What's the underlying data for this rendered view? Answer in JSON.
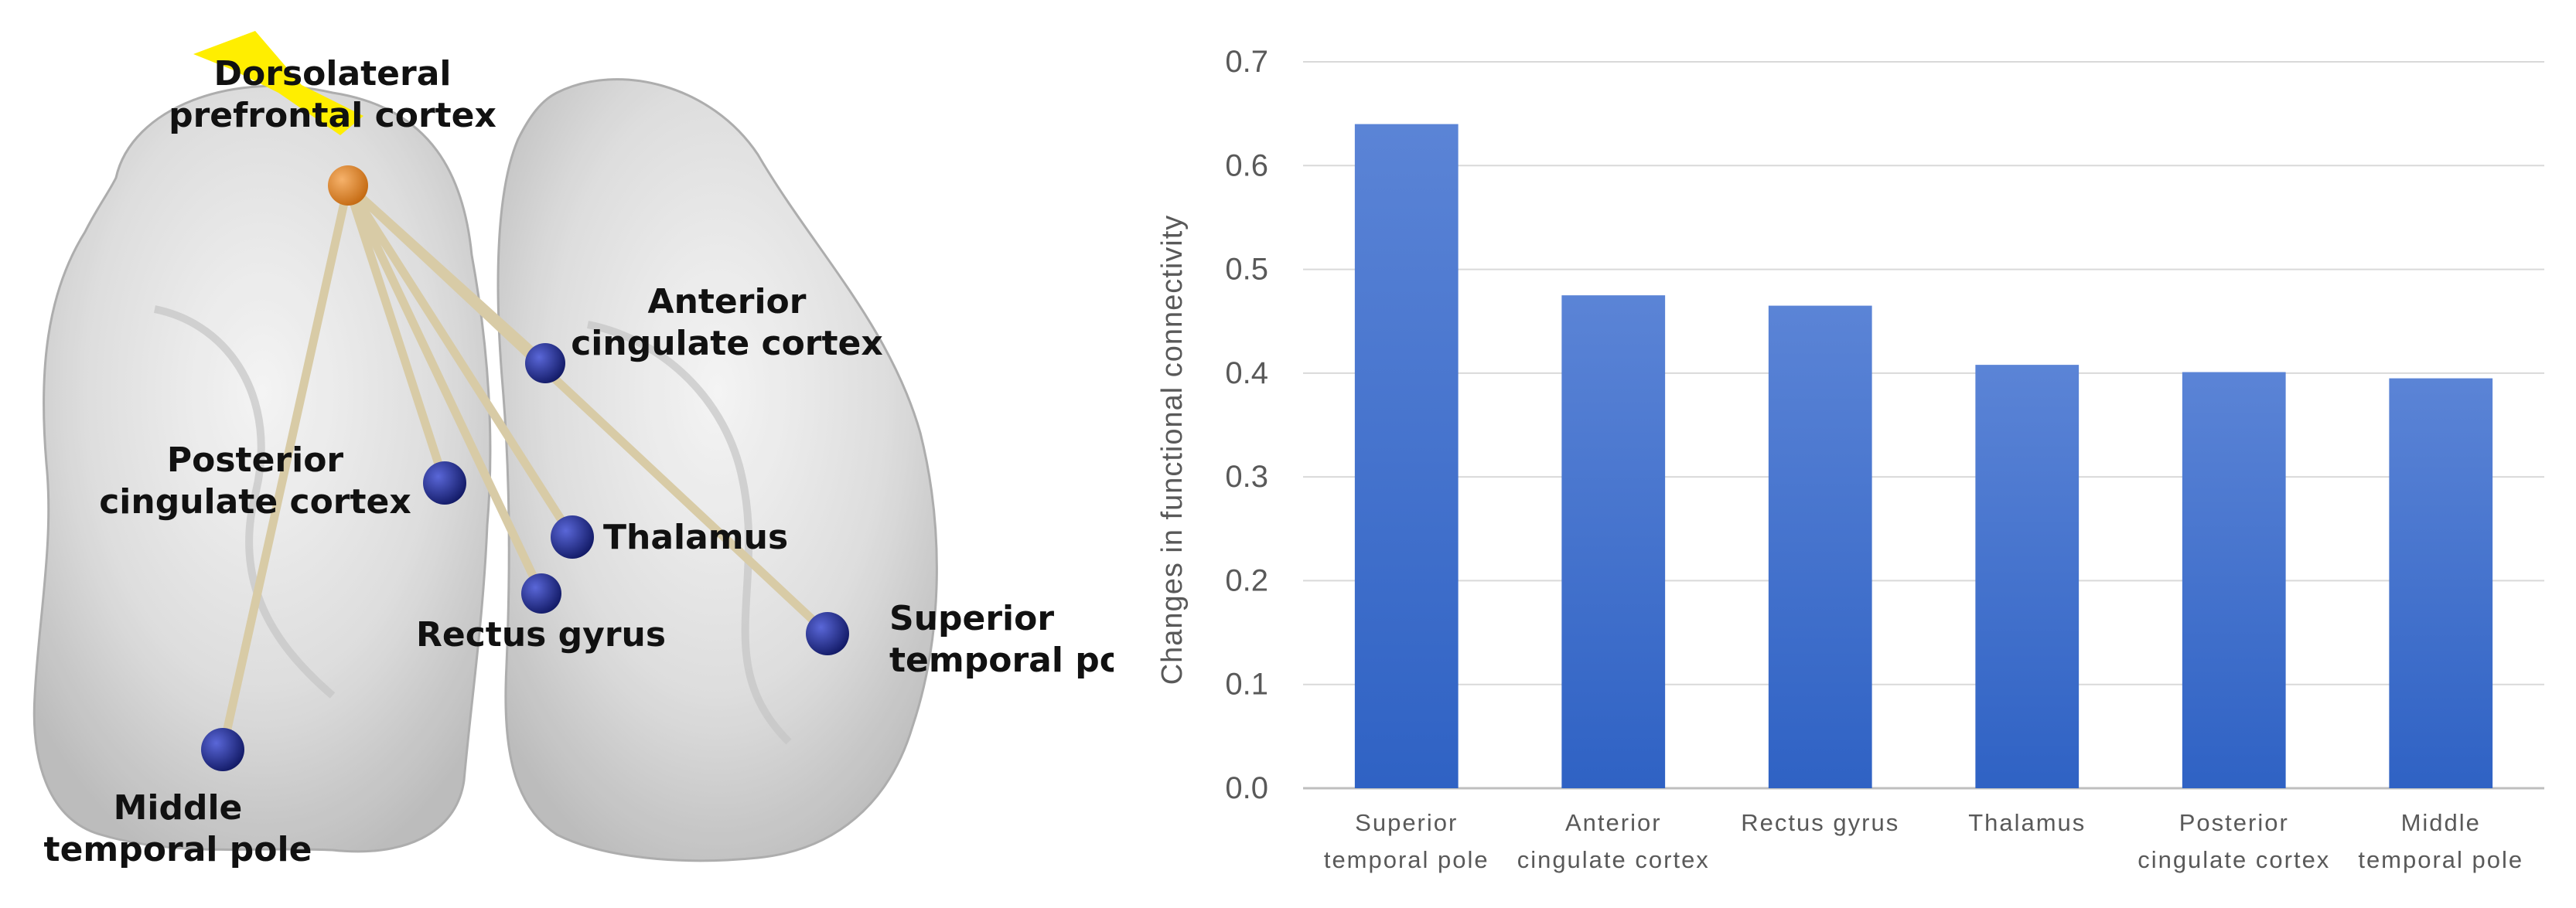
{
  "figure": {
    "brain": {
      "nodes": [
        {
          "key": "dlpfc",
          "label_lines": [
            "Dorsolateral",
            "prefrontal cortex"
          ],
          "color": "#d9822b",
          "role": "seed"
        },
        {
          "key": "acc",
          "label_lines": [
            "Anterior",
            "cingulate cortex"
          ],
          "color": "#1f2a8a"
        },
        {
          "key": "pcc",
          "label_lines": [
            "Posterior",
            "cingulate cortex"
          ],
          "color": "#1f2a8a"
        },
        {
          "key": "thal",
          "label_lines": [
            "Thalamus"
          ],
          "color": "#1f2a8a"
        },
        {
          "key": "rectus",
          "label_lines": [
            "Rectus gyrus"
          ],
          "color": "#1f2a8a"
        },
        {
          "key": "stp",
          "label_lines": [
            "Superior",
            "temporal pole"
          ],
          "color": "#1f2a8a"
        },
        {
          "key": "mtp",
          "label_lines": [
            "Middle",
            "temporal pole"
          ],
          "color": "#1f2a8a"
        }
      ],
      "connection_color": "#d8cba6",
      "seed_marker_color": "#ffee00"
    }
  },
  "chart_data": {
    "type": "bar",
    "categories": [
      [
        "Superior",
        "temporal pole"
      ],
      [
        "Anterior",
        "cingulate cortex"
      ],
      [
        "Rectus gyrus"
      ],
      [
        "Thalamus"
      ],
      [
        "Posterior",
        "cingulate cortex"
      ],
      [
        "Middle",
        "temporal pole"
      ]
    ],
    "values": [
      0.64,
      0.475,
      0.465,
      0.408,
      0.401,
      0.395
    ],
    "ylabel": "Changes in functional connectivity",
    "xlabel": "",
    "ylim": [
      0,
      0.7
    ],
    "yticks": [
      "0.0",
      "0.1",
      "0.2",
      "0.3",
      "0.4",
      "0.5",
      "0.6",
      "0.7"
    ],
    "grid": true,
    "bar_color_top": "#5b84d6",
    "bar_color_bottom": "#2f62c4"
  }
}
